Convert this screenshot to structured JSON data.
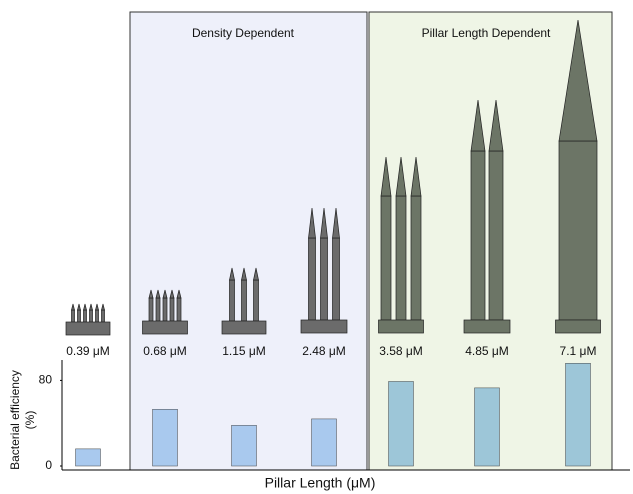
{
  "chart_data": {
    "type": "bar",
    "annotations": [
      "Density Dependent",
      "Pillar Length Dependent"
    ],
    "categories": [
      "0.39 μM",
      "0.68 μM",
      "1.15 μM",
      "2.48 μM",
      "3.58 μM",
      "4.85 μM",
      "7.1 μM"
    ],
    "values": [
      16,
      53,
      38,
      44,
      79,
      73,
      96
    ],
    "colors": [
      "#a9c9ee",
      "#a9c9ee",
      "#a9c9ee",
      "#a9c9ee",
      "#9dc6d8",
      "#9dc6d8",
      "#9dc6d8"
    ],
    "x_label": "Pillar Length (μM)",
    "y_label": [
      "Bacterial efficiency",
      "(%)"
    ],
    "ylim": [
      0,
      100
    ],
    "yticks": [
      0,
      80
    ]
  }
}
